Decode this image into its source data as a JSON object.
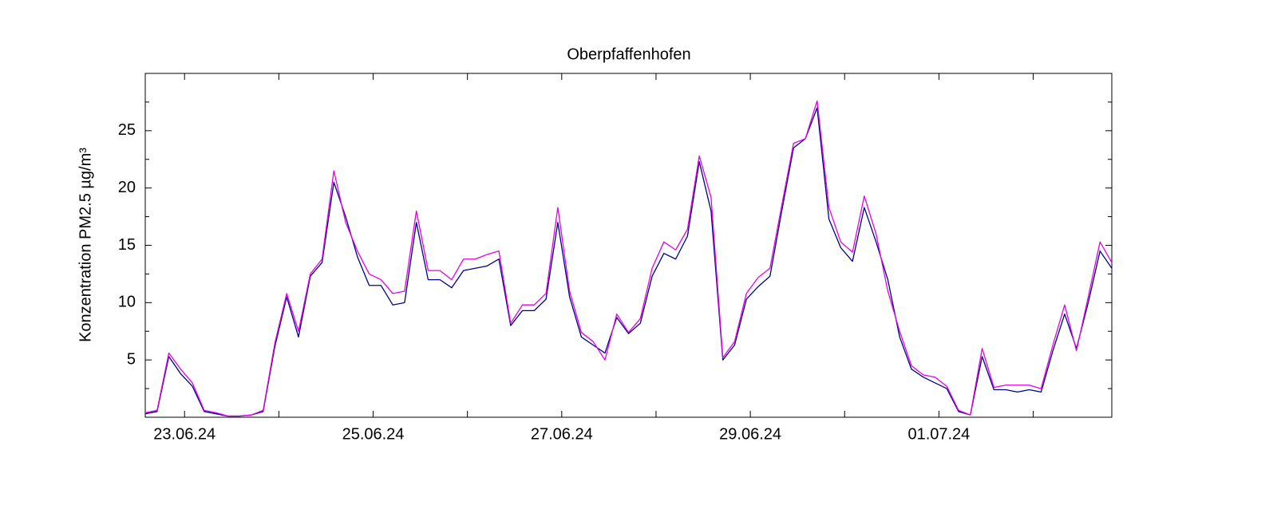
{
  "chart_data": {
    "type": "line",
    "title": "Oberpfaffenhofen",
    "y_label": "Konzentration PM2.5 µg/m³",
    "x": [
      "2024-06-22T14:00",
      "2024-06-22T17:00",
      "2024-06-22T20:00",
      "2024-06-22T23:00",
      "2024-06-23T02:00",
      "2024-06-23T05:00",
      "2024-06-23T08:00",
      "2024-06-23T11:00",
      "2024-06-23T14:00",
      "2024-06-23T17:00",
      "2024-06-23T20:00",
      "2024-06-23T23:00",
      "2024-06-24T02:00",
      "2024-06-24T05:00",
      "2024-06-24T08:00",
      "2024-06-24T11:00",
      "2024-06-24T14:00",
      "2024-06-24T17:00",
      "2024-06-24T20:00",
      "2024-06-24T23:00",
      "2024-06-25T02:00",
      "2024-06-25T05:00",
      "2024-06-25T08:00",
      "2024-06-25T11:00",
      "2024-06-25T14:00",
      "2024-06-25T17:00",
      "2024-06-25T20:00",
      "2024-06-25T23:00",
      "2024-06-26T02:00",
      "2024-06-26T05:00",
      "2024-06-26T08:00",
      "2024-06-26T11:00",
      "2024-06-26T14:00",
      "2024-06-26T17:00",
      "2024-06-26T20:00",
      "2024-06-26T23:00",
      "2024-06-27T02:00",
      "2024-06-27T05:00",
      "2024-06-27T08:00",
      "2024-06-27T11:00",
      "2024-06-27T14:00",
      "2024-06-27T17:00",
      "2024-06-27T20:00",
      "2024-06-27T23:00",
      "2024-06-28T02:00",
      "2024-06-28T05:00",
      "2024-06-28T08:00",
      "2024-06-28T11:00",
      "2024-06-28T14:00",
      "2024-06-28T17:00",
      "2024-06-28T20:00",
      "2024-06-28T23:00",
      "2024-06-29T02:00",
      "2024-06-29T05:00",
      "2024-06-29T08:00",
      "2024-06-29T11:00",
      "2024-06-29T14:00",
      "2024-06-29T17:00",
      "2024-06-29T20:00",
      "2024-06-29T23:00",
      "2024-06-30T02:00",
      "2024-06-30T05:00",
      "2024-06-30T08:00",
      "2024-06-30T11:00",
      "2024-06-30T14:00",
      "2024-06-30T17:00",
      "2024-06-30T20:00",
      "2024-06-30T23:00",
      "2024-07-01T02:00",
      "2024-07-01T05:00",
      "2024-07-01T08:00",
      "2024-07-01T11:00",
      "2024-07-01T14:00",
      "2024-07-01T17:00",
      "2024-07-01T20:00",
      "2024-07-01T23:00",
      "2024-07-02T02:00",
      "2024-07-02T05:00",
      "2024-07-02T08:00",
      "2024-07-02T11:00",
      "2024-07-02T14:00",
      "2024-07-02T17:00",
      "2024-07-02T20:00"
    ],
    "series": [
      {
        "color": "#00008b",
        "values": [
          0.3,
          0.5,
          5.3,
          3.8,
          2.7,
          0.5,
          0.3,
          0.1,
          0.1,
          0.2,
          0.5,
          6.2,
          10.5,
          7.0,
          12.3,
          13.5,
          20.5,
          17.5,
          14.0,
          11.5,
          11.5,
          9.8,
          10.0,
          17.0,
          12.0,
          12.0,
          11.3,
          12.8,
          13.0,
          13.2,
          13.8,
          8.0,
          9.3,
          9.3,
          10.3,
          17.0,
          10.5,
          7.0,
          6.3,
          5.6,
          8.7,
          7.3,
          8.2,
          12.3,
          14.3,
          13.8,
          15.8,
          22.3,
          18.0,
          5.0,
          6.3,
          10.3,
          11.4,
          12.3,
          18.0,
          23.5,
          24.3,
          27.0,
          17.3,
          14.8,
          13.6,
          18.3,
          15.3,
          12.0,
          7.0,
          4.2,
          3.5,
          3.0,
          2.5,
          0.5,
          0.2,
          5.3,
          2.4,
          2.4,
          2.2,
          2.4,
          2.2,
          5.8,
          9.0,
          6.0,
          10.0,
          14.5,
          13.0
        ]
      },
      {
        "color": "#e600e6",
        "values": [
          0.4,
          0.6,
          5.6,
          4.2,
          3.0,
          0.6,
          0.4,
          0.1,
          0.1,
          0.2,
          0.6,
          6.5,
          10.8,
          7.5,
          12.5,
          13.8,
          21.5,
          17.0,
          14.5,
          12.5,
          12.0,
          10.8,
          11.0,
          18.0,
          12.8,
          12.8,
          12.0,
          13.8,
          13.8,
          14.2,
          14.5,
          8.2,
          9.8,
          9.8,
          10.8,
          18.3,
          11.0,
          7.4,
          6.6,
          5.0,
          9.0,
          7.4,
          8.6,
          13.0,
          15.3,
          14.6,
          16.4,
          22.8,
          19.2,
          5.2,
          6.6,
          10.8,
          12.2,
          13.0,
          18.5,
          23.9,
          24.3,
          27.6,
          18.3,
          15.3,
          14.4,
          19.3,
          16.0,
          11.0,
          7.5,
          4.5,
          3.7,
          3.5,
          2.7,
          0.6,
          0.2,
          6.0,
          2.6,
          2.8,
          2.8,
          2.8,
          2.5,
          6.3,
          9.8,
          5.8,
          10.5,
          15.3,
          13.5
        ]
      }
    ],
    "xlim": [
      "2024-06-22T14:00",
      "2024-07-02T20:00"
    ],
    "xticks": [
      {
        "value": "2024-06-23T00:00",
        "label": "23.06.24"
      },
      {
        "value": "2024-06-25T00:00",
        "label": "25.06.24"
      },
      {
        "value": "2024-06-27T00:00",
        "label": "27.06.24"
      },
      {
        "value": "2024-06-29T00:00",
        "label": "29.06.24"
      },
      {
        "value": "2024-07-01T00:00",
        "label": "01.07.24"
      }
    ],
    "minor_xticks": [
      "2024-06-24T00:00",
      "2024-06-26T00:00",
      "2024-06-28T00:00",
      "2024-06-30T00:00",
      "2024-07-02T00:00"
    ],
    "ylim": [
      0,
      30
    ],
    "yticks": [
      5,
      10,
      15,
      20,
      25
    ],
    "minor_yticks": [
      2.5,
      7.5,
      12.5,
      17.5,
      22.5,
      27.5
    ]
  }
}
